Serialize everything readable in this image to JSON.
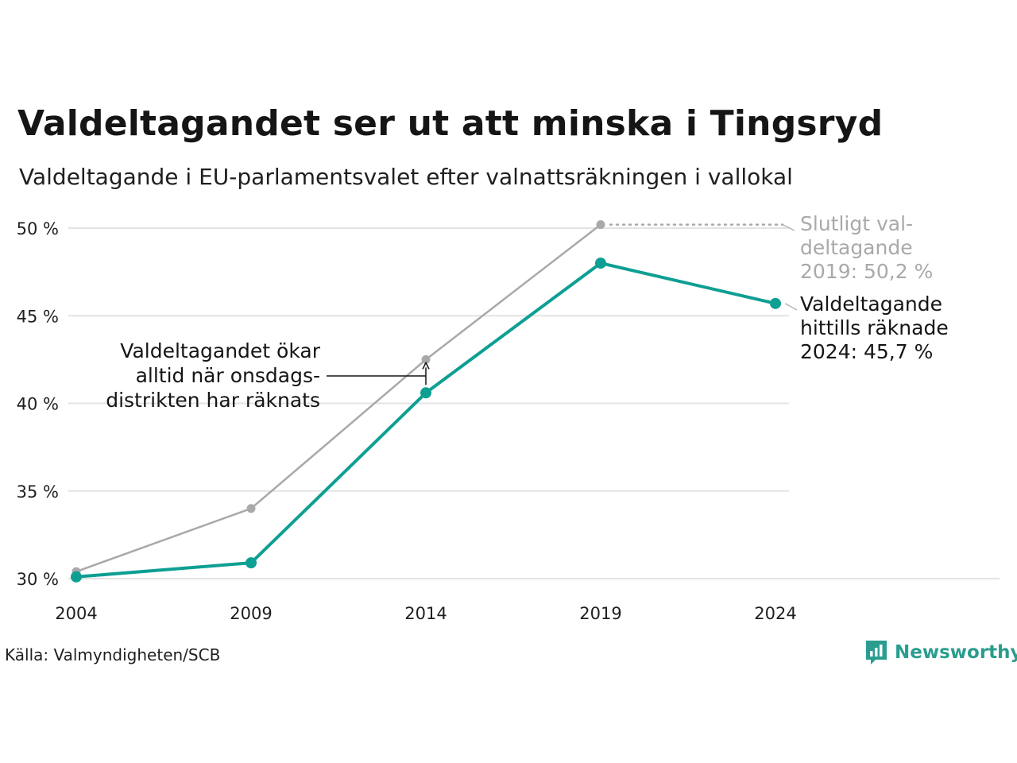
{
  "title": "Valdeltagandet ser ut att minska i Tingsryd",
  "subtitle": "Valdeltagande i EU-parlamentsvalet efter valnattsräkningen i vallokal",
  "source": "Källa: Valmyndigheten/SCB",
  "brand": "Newsworthy",
  "colors": {
    "counted": "#0e9f93",
    "final": "#a9a9a9",
    "grid": "#e3e3e3",
    "brand": "#2a9d8f"
  },
  "chart_data": {
    "type": "line",
    "categories": [
      "2004",
      "2009",
      "2014",
      "2019",
      "2024"
    ],
    "ylim": [
      30,
      50
    ],
    "yticks": [
      30,
      35,
      40,
      45,
      50
    ],
    "ytick_labels": [
      "30 %",
      "35 %",
      "40 %",
      "45 %",
      "50 %"
    ],
    "grid": true,
    "series": [
      {
        "key": "final",
        "values": [
          30.4,
          34.0,
          42.5,
          50.2,
          null
        ]
      },
      {
        "key": "counted",
        "values": [
          30.1,
          30.9,
          40.6,
          48.0,
          45.7
        ]
      }
    ],
    "annotations": {
      "final_label": [
        "Slutligt val-",
        "deltagande",
        "2019: 50,2 %"
      ],
      "counted_label": [
        "Valdeltagande",
        "hittills räknade",
        "2024: 45,7 %"
      ],
      "note": [
        "Valdeltagandet ökar",
        "alltid när onsdags-",
        "distrikten har räknats"
      ]
    }
  }
}
